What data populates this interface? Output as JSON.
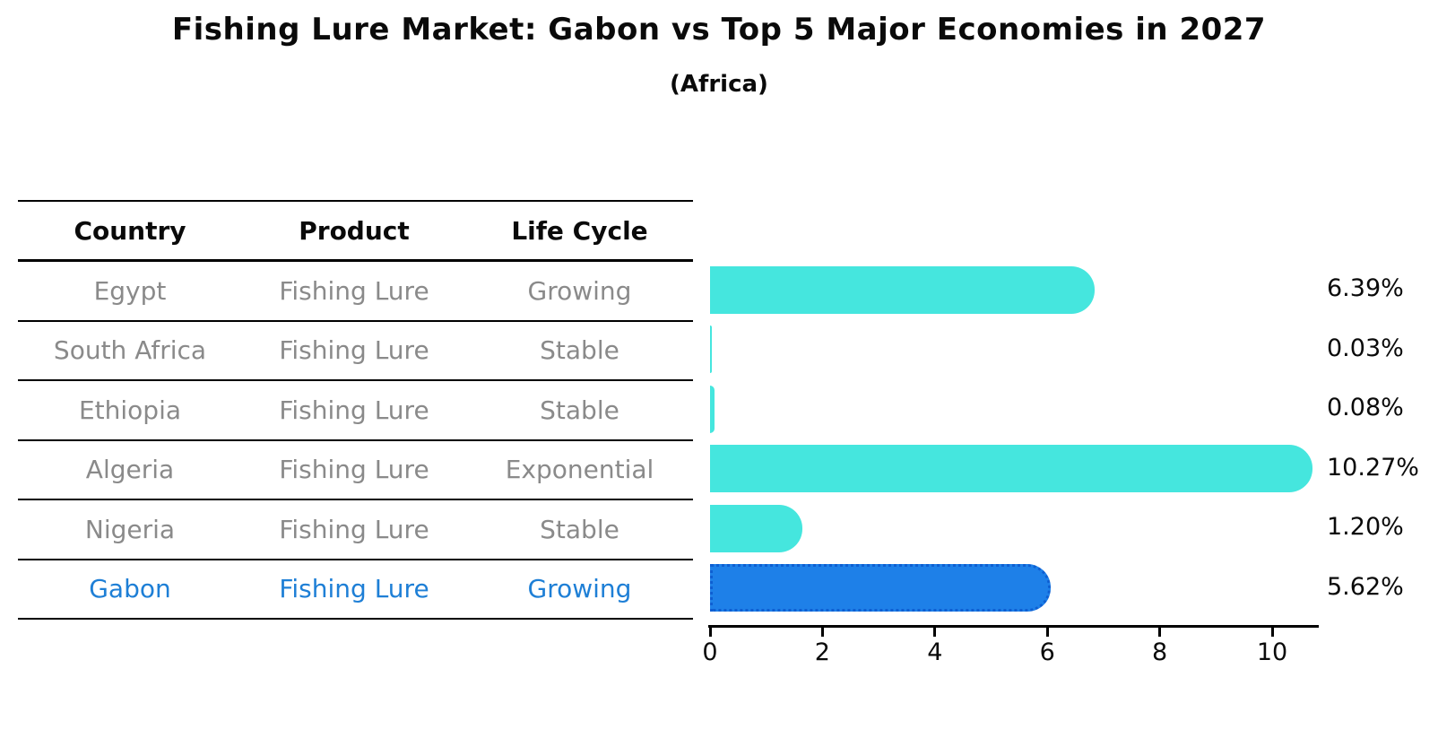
{
  "title": "Fishing Lure Market: Gabon vs Top 5 Major Economies in 2027",
  "subtitle": "(Africa)",
  "colors": {
    "bar": "#45e6de",
    "highlight_bar": "#1e80e8",
    "highlight_border": "#0e5fd2",
    "row_text": "#8a8a8a",
    "highlight_text": "#1e7fd6",
    "axis": "#000000"
  },
  "table": {
    "columns": [
      "Country",
      "Product",
      "Life Cycle"
    ],
    "rows": [
      {
        "country": "Egypt",
        "product": "Fishing Lure",
        "life_cycle": "Growing",
        "value_label": "6.39%",
        "highlight": false
      },
      {
        "country": "South Africa",
        "product": "Fishing Lure",
        "life_cycle": "Stable",
        "value_label": "0.03%",
        "highlight": false
      },
      {
        "country": "Ethiopia",
        "product": "Fishing Lure",
        "life_cycle": "Stable",
        "value_label": "0.08%",
        "highlight": false
      },
      {
        "country": "Algeria",
        "product": "Fishing Lure",
        "life_cycle": "Exponential",
        "value_label": "10.27%",
        "highlight": false
      },
      {
        "country": "Nigeria",
        "product": "Fishing Lure",
        "life_cycle": "Stable",
        "value_label": "1.20%",
        "highlight": false
      },
      {
        "country": "Gabon",
        "product": "Fishing Lure",
        "life_cycle": "Growing",
        "value_label": "5.62%",
        "highlight": true
      }
    ]
  },
  "chart_data": {
    "type": "bar",
    "orientation": "horizontal",
    "title": "Fishing Lure Market: Gabon vs Top 5 Major Economies in 2027",
    "subtitle": "(Africa)",
    "categories": [
      "Egypt",
      "South Africa",
      "Ethiopia",
      "Algeria",
      "Nigeria",
      "Gabon"
    ],
    "values": [
      6.39,
      0.03,
      0.08,
      10.27,
      1.2,
      5.62
    ],
    "value_labels": [
      "6.39%",
      "0.03%",
      "0.08%",
      "10.27%",
      "1.20%",
      "5.62%"
    ],
    "highlight_category": "Gabon",
    "xlabel": "",
    "ylabel": "",
    "xlim": [
      0,
      10.8
    ],
    "xticks": [
      0,
      2,
      4,
      6,
      8,
      10
    ],
    "grid": false,
    "legend": false
  }
}
